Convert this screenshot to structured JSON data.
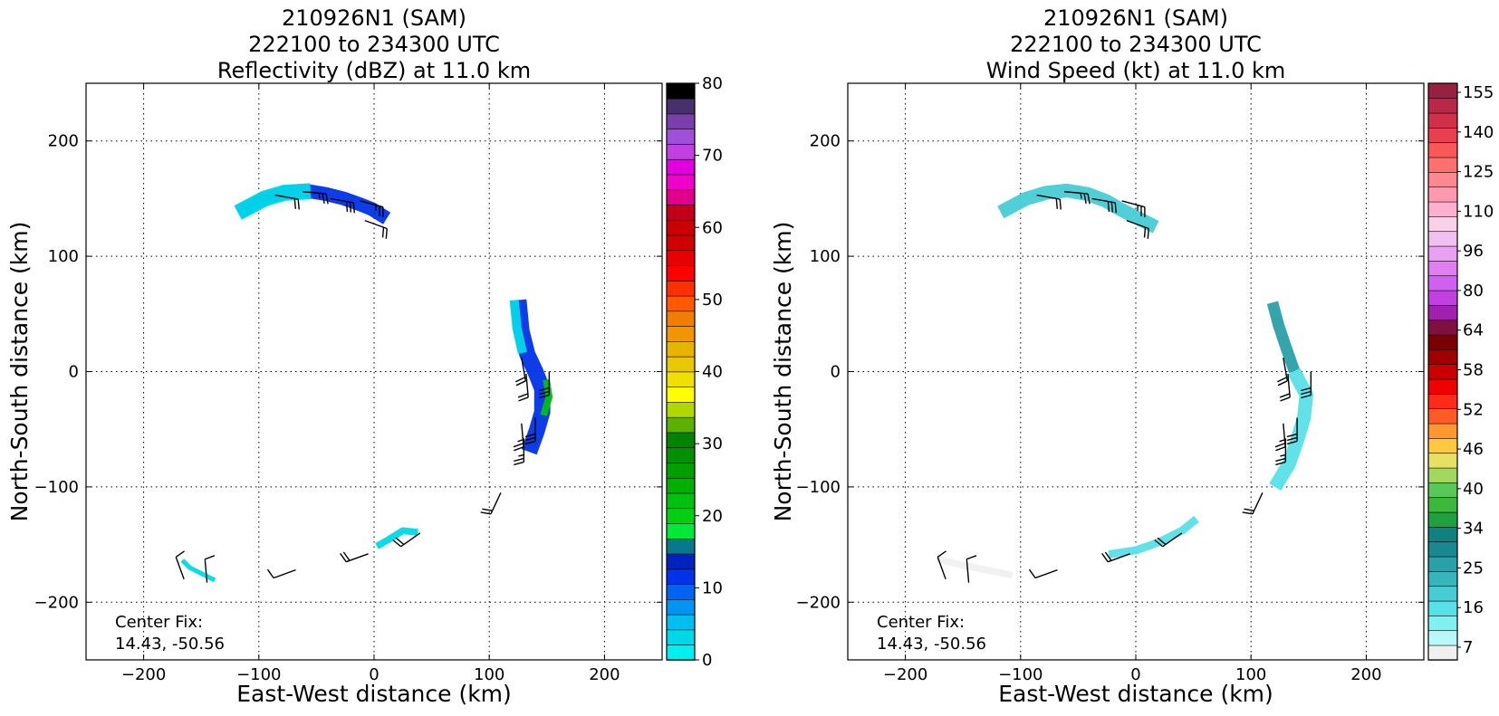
{
  "colors": {
    "refl_swath": "#00d8f0",
    "refl_core": "#1a4fe0",
    "refl_green": "#1fcf1f",
    "wind_teal": "#2a9a9a",
    "wind_light": "#4fd8dc",
    "wind_green": "#3fbf3f",
    "wind_gray": "#e8e8e8",
    "barb": "#000000"
  },
  "chart_data": [
    {
      "type": "heatmap",
      "title_lines": [
        "210926N1 (SAM)",
        "222100 to 234300 UTC",
        "Reflectivity (dBZ) at 11.0 km"
      ],
      "xlabel": "East-West distance (km)",
      "ylabel": "North-South distance (km)",
      "xlim": [
        -250,
        250
      ],
      "ylim": [
        -250,
        250
      ],
      "xticks": [
        -200,
        -100,
        0,
        100,
        200
      ],
      "yticks": [
        -200,
        -100,
        0,
        100,
        200
      ],
      "grid": true,
      "annotation_lines": [
        "Center Fix:",
        "14.43, -50.56"
      ],
      "colorbar": {
        "min": 0,
        "max": 80,
        "tick_values": [
          0,
          10,
          20,
          30,
          40,
          50,
          60,
          70,
          80
        ],
        "tick_labels": [
          "0",
          "10",
          "20",
          "30",
          "40",
          "50",
          "60",
          "70",
          "80"
        ],
        "colors": [
          "#00f0f0",
          "#00d8e8",
          "#00bef0",
          "#0096f0",
          "#0064f0",
          "#0032e8",
          "#0022c0",
          "#08788a",
          "#00e838",
          "#00d010",
          "#00c010",
          "#00b000",
          "#00a000",
          "#009000",
          "#008400",
          "#5cb000",
          "#b0d800",
          "#ffff00",
          "#f0e000",
          "#e8c800",
          "#e8b400",
          "#f09600",
          "#f07e00",
          "#ff5a00",
          "#ff3000",
          "#ff0000",
          "#e80000",
          "#d00000",
          "#c80000",
          "#c0001a",
          "#e0008c",
          "#f000c8",
          "#e000e0",
          "#c040e0",
          "#a050d8",
          "#7840a8",
          "#48306c",
          "#000000"
        ]
      },
      "series": [
        {
          "name": "north band",
          "value": 12,
          "points": [
            [
              -112,
              141
            ],
            [
              -95,
              150
            ],
            [
              -78,
              155
            ],
            [
              -60,
              157
            ],
            [
              -42,
              154
            ],
            [
              -26,
              150
            ],
            [
              -12,
              145
            ],
            [
              -2,
              141
            ],
            [
              6,
              136
            ]
          ],
          "width": 12
        },
        {
          "name": "north band cyan",
          "value": 3,
          "points": [
            [
              -112,
              141
            ],
            [
              -95,
              150
            ],
            [
              -78,
              155
            ],
            [
              -62,
              156
            ]
          ],
          "width": 14
        },
        {
          "name": "eastern band",
          "value": 12,
          "points": [
            [
              126,
              55
            ],
            [
              128,
              35
            ],
            [
              133,
              15
            ],
            [
              140,
              0
            ],
            [
              146,
              -15
            ],
            [
              146,
              -35
            ],
            [
              141,
              -52
            ],
            [
              137,
              -63
            ]
          ],
          "width": 14
        },
        {
          "name": "eastern band cyan",
          "value": 3,
          "points": [
            [
              122,
              58
            ],
            [
              124,
              38
            ],
            [
              128,
              20
            ]
          ],
          "width": 8
        },
        {
          "name": "eastern green",
          "value": 22,
          "points": [
            [
              150,
              -10
            ],
            [
              152,
              -22
            ],
            [
              148,
              -35
            ]
          ],
          "width": 6
        },
        {
          "name": "south fragment",
          "value": 3,
          "points": [
            [
              5,
              -150
            ],
            [
              12,
              -146
            ],
            [
              25,
              -138
            ],
            [
              35,
              -139
            ]
          ],
          "width": 6
        },
        {
          "name": "southwest fragment",
          "value": 3,
          "points": [
            [
              -165,
              -165
            ],
            [
              -160,
              -170
            ],
            [
              -150,
              -175
            ],
            [
              -140,
              -180
            ]
          ],
          "width": 4
        }
      ]
    },
    {
      "type": "heatmap",
      "title_lines": [
        "210926N1 (SAM)",
        "222100 to 234300 UTC",
        "Wind Speed (kt) at 11.0 km"
      ],
      "xlabel": "East-West distance (km)",
      "ylabel": "North-South distance (km)",
      "xlim": [
        -250,
        250
      ],
      "ylim": [
        -250,
        250
      ],
      "xticks": [
        -200,
        -100,
        0,
        100,
        200
      ],
      "yticks": [
        -200,
        -100,
        0,
        100,
        200
      ],
      "grid": true,
      "annotation_lines": [
        "Center Fix:",
        "14.43, -50.56"
      ],
      "colorbar": {
        "min": 7,
        "max": 160,
        "tick_labels": [
          "7",
          "16",
          "25",
          "34",
          "40",
          "46",
          "52",
          "58",
          "64",
          "80",
          "96",
          "110",
          "125",
          "140",
          "155"
        ],
        "colors": [
          "#f0f0f0",
          "#b8f8f8",
          "#80f0f0",
          "#58e0e8",
          "#48ccd4",
          "#38b4bc",
          "#2aa0a8",
          "#1a8890",
          "#108080",
          "#20a040",
          "#3cb83c",
          "#58c858",
          "#a0d860",
          "#e8e060",
          "#ffc840",
          "#ff9830",
          "#ff5a28",
          "#ff2a18",
          "#f00000",
          "#c80000",
          "#a00000",
          "#780000",
          "#801040",
          "#a020b0",
          "#c040e0",
          "#d060f0",
          "#e080f0",
          "#e8a0f0",
          "#f0c0f0",
          "#f8d0e8",
          "#ffb0d0",
          "#ff98b0",
          "#ff8890",
          "#ff7070",
          "#f85858",
          "#e84050",
          "#d03048",
          "#b82848",
          "#982040"
        ]
      },
      "series": [
        {
          "name": "north band",
          "value": 25,
          "points": [
            [
              -112,
              141
            ],
            [
              -95,
              150
            ],
            [
              -78,
              155
            ],
            [
              -60,
              157
            ],
            [
              -42,
              154
            ],
            [
              -26,
              148
            ],
            [
              -12,
              140
            ],
            [
              0,
              134
            ],
            [
              12,
              128
            ]
          ],
          "width": 12
        },
        {
          "name": "eastern band green",
          "value": 34,
          "points": [
            [
              120,
              55
            ],
            [
              124,
              40
            ],
            [
              130,
              22
            ],
            [
              136,
              5
            ]
          ],
          "width": 10
        },
        {
          "name": "eastern band teal",
          "value": 22,
          "points": [
            [
              140,
              -5
            ],
            [
              148,
              -20
            ],
            [
              146,
              -40
            ],
            [
              140,
              -60
            ],
            [
              133,
              -80
            ],
            [
              124,
              -95
            ]
          ],
          "width": 12
        },
        {
          "name": "south band",
          "value": 22,
          "points": [
            [
              -20,
              -158
            ],
            [
              0,
              -155
            ],
            [
              20,
              -148
            ],
            [
              40,
              -138
            ],
            [
              50,
              -130
            ]
          ],
          "width": 7
        },
        {
          "name": "southwest fragment",
          "value": 7,
          "points": [
            [
              -170,
              -163
            ],
            [
              -150,
              -168
            ],
            [
              -130,
              -172
            ],
            [
              -110,
              -176
            ]
          ],
          "width": 6
        }
      ]
    }
  ],
  "wind_barbs": [
    {
      "x": -86,
      "y": 153,
      "dir": 100,
      "speed": 20
    },
    {
      "x": -62,
      "y": 156,
      "dir": 95,
      "speed": 25
    },
    {
      "x": -38,
      "y": 150,
      "dir": 100,
      "speed": 30
    },
    {
      "x": -12,
      "y": 148,
      "dir": 105,
      "speed": 25
    },
    {
      "x": -8,
      "y": 131,
      "dir": 110,
      "speed": 20
    },
    {
      "x": 128,
      "y": 12,
      "dir": 170,
      "speed": 20
    },
    {
      "x": 132,
      "y": -2,
      "dir": 175,
      "speed": 20
    },
    {
      "x": 152,
      "y": 0,
      "dir": 180,
      "speed": 30
    },
    {
      "x": 128,
      "y": -45,
      "dir": 175,
      "speed": 25
    },
    {
      "x": 140,
      "y": -40,
      "dir": 180,
      "speed": 30
    },
    {
      "x": 130,
      "y": -58,
      "dir": 180,
      "speed": 25
    },
    {
      "x": 110,
      "y": -105,
      "dir": 205,
      "speed": 20
    },
    {
      "x": -5,
      "y": -158,
      "dir": 250,
      "speed": 20
    },
    {
      "x": 40,
      "y": -140,
      "dir": 235,
      "speed": 20
    },
    {
      "x": -68,
      "y": -172,
      "dir": 250,
      "speed": 10
    },
    {
      "x": -165,
      "y": -180,
      "dir": 340,
      "speed": 10
    },
    {
      "x": -145,
      "y": -183,
      "dir": 355,
      "speed": 10
    }
  ]
}
